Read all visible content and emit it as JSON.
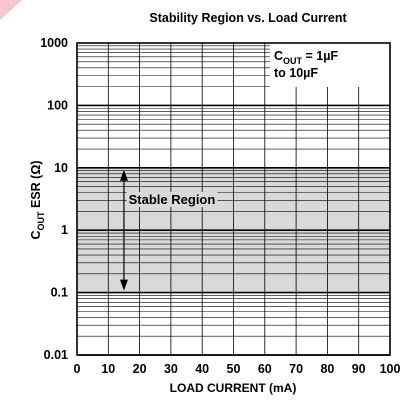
{
  "chart_data": {
    "type": "area",
    "title": "Stability Region vs. Load Current",
    "xlabel": "LOAD CURRENT (mA)",
    "ylabel": {
      "main": "C",
      "sub": "OUT",
      "rest": " ESR (Ω)"
    },
    "x_scale": "linear",
    "y_scale": "log",
    "xlim": [
      0,
      100
    ],
    "ylim": [
      0.01,
      1000
    ],
    "x_ticks": [
      0,
      10,
      20,
      30,
      40,
      50,
      60,
      70,
      80,
      90,
      100
    ],
    "y_ticks": [
      0.01,
      0.1,
      1,
      10,
      100,
      1000
    ],
    "y_tick_labels": [
      "0.01",
      "0.1",
      "1",
      "10",
      "100",
      "1000"
    ],
    "grid": true,
    "series": [
      {
        "name": "Stable Region",
        "x": [
          0,
          100
        ],
        "y_low": [
          0.1,
          0.1
        ],
        "y_high": [
          10,
          10
        ],
        "color": "#d9d9d9"
      }
    ],
    "annotations": {
      "stable_label": "Stable Region",
      "arrow_x": 15,
      "arrow_y_range": [
        0.1,
        10
      ]
    },
    "legend": {
      "line1_main": "C",
      "line1_sub": "OUT",
      "line1_rest": " = 1µF",
      "line2": "to 10µF"
    },
    "colors": {
      "grid": "#000000",
      "band": "#d9d9d9",
      "corner_accent": "#f4b6c0"
    }
  }
}
